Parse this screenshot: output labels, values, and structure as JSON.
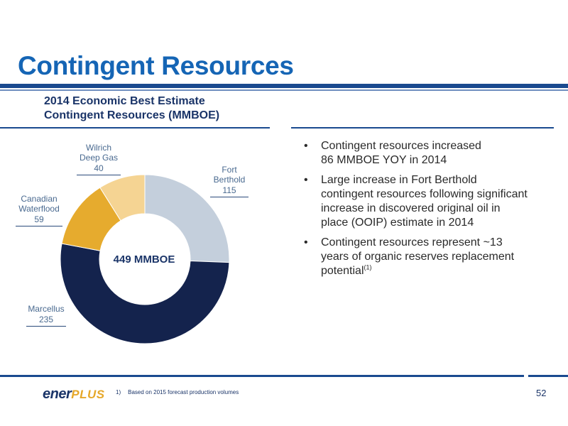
{
  "slide": {
    "title": "Contingent Resources",
    "page_number": "52"
  },
  "chart_data": {
    "type": "pie",
    "title_lines": [
      "2014 Economic Best Estimate",
      "Contingent Resources (MMBOE)"
    ],
    "center_label": "449 MMBOE",
    "slices": [
      {
        "label_lines": [
          "Fort",
          "Berthold"
        ],
        "value": 115,
        "color": "#c4cfdc"
      },
      {
        "label_lines": [
          "Marcellus"
        ],
        "value": 235,
        "color": "#14234d"
      },
      {
        "label_lines": [
          "Canadian",
          "Waterflood"
        ],
        "value": 59,
        "color": "#e6ab2e"
      },
      {
        "label_lines": [
          "Wilrich",
          "Deep Gas"
        ],
        "value": 40,
        "color": "#f5d493"
      }
    ]
  },
  "bullets": [
    {
      "lines": [
        "Contingent resources increased",
        "86 MMBOE YOY in 2014"
      ],
      "sup": ""
    },
    {
      "lines": [
        "Large increase in Fort Berthold",
        "contingent resources following significant",
        "increase in discovered original oil in",
        "place (OOIP) estimate in 2014"
      ],
      "sup": ""
    },
    {
      "lines": [
        "Contingent resources represent ~13",
        "years of organic reserves replacement",
        "potential"
      ],
      "sup": "(1)"
    }
  ],
  "footer": {
    "logo_part1": "ener",
    "logo_part2": "PLUS",
    "footnote_number": "1)",
    "footnote_text": "Based on 2015 forecast production volumes"
  }
}
